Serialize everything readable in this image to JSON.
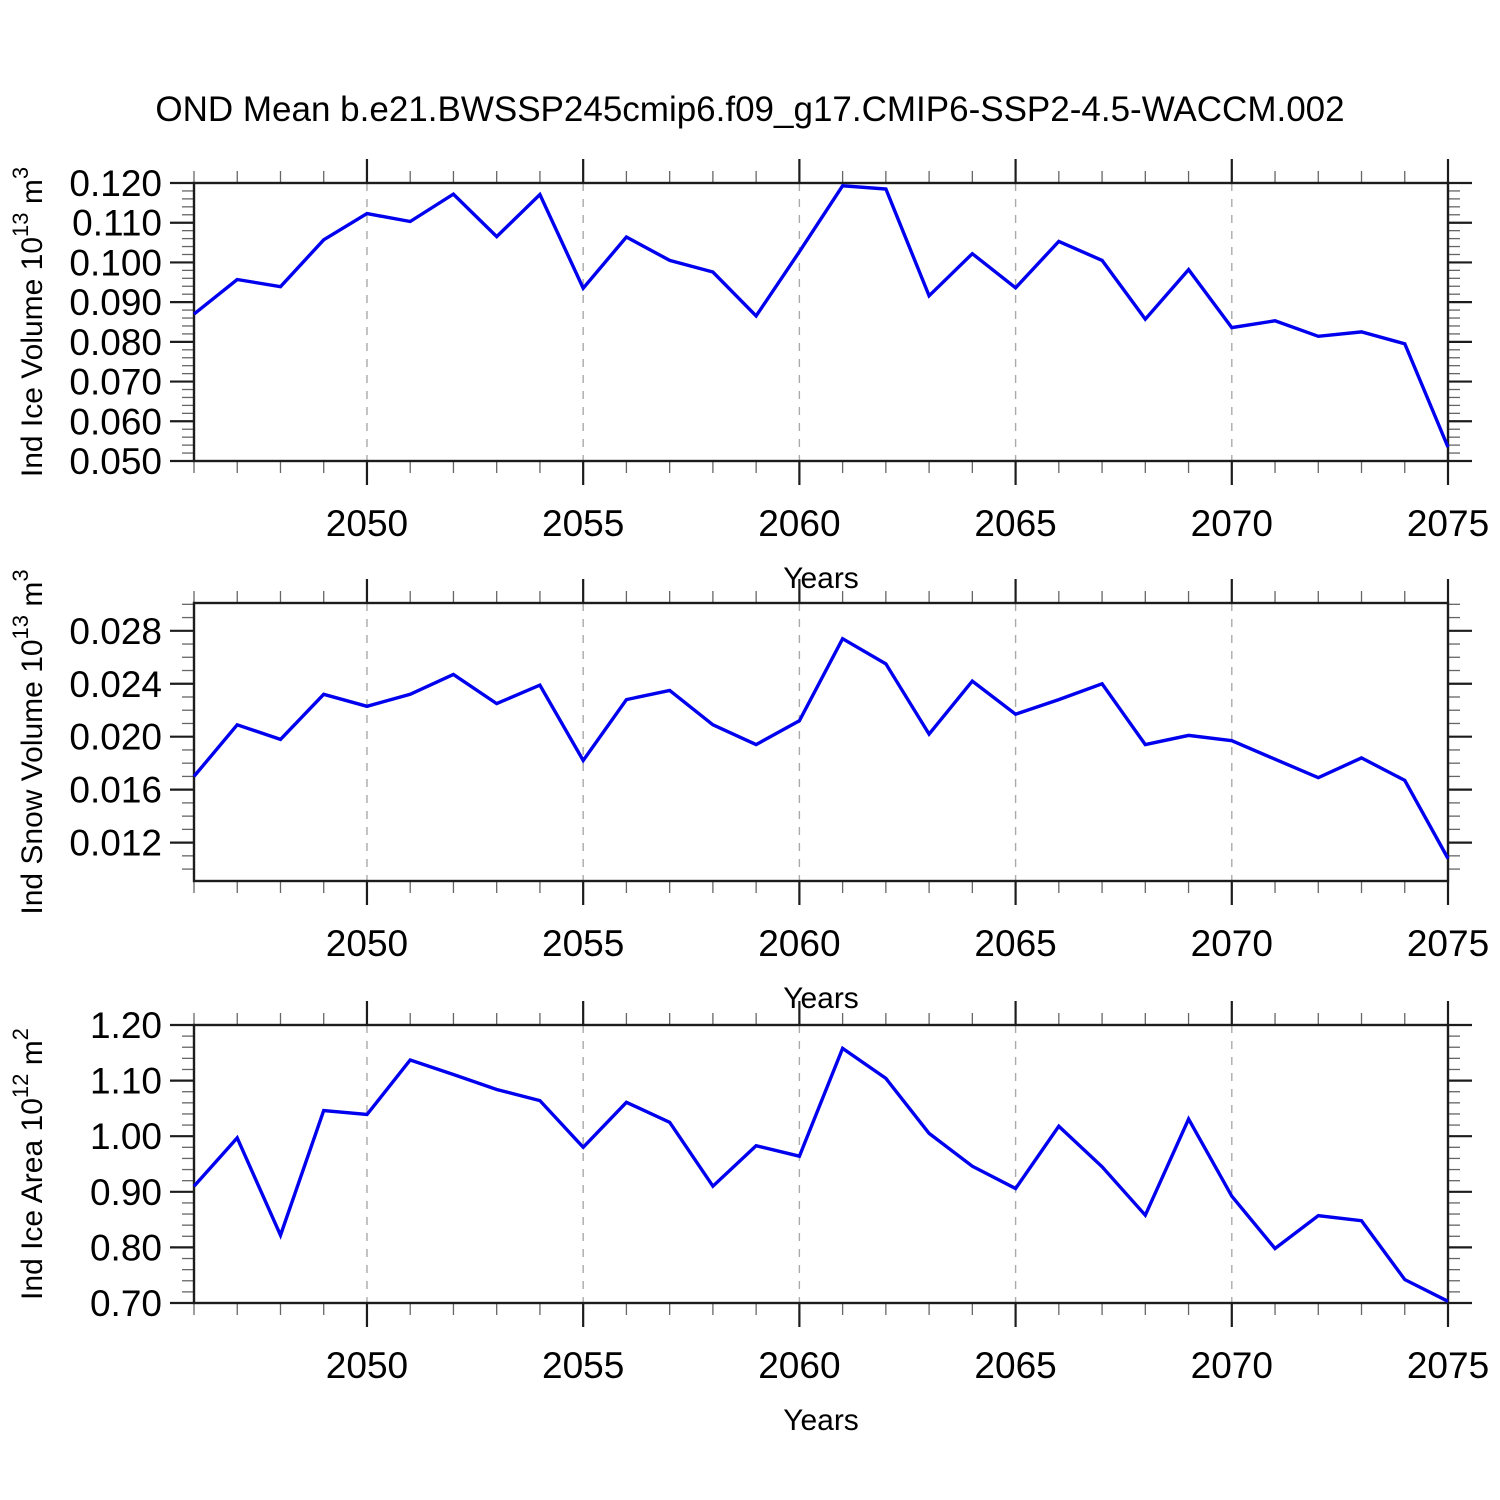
{
  "page": {
    "title": "OND Mean b.e21.BWSSP245cmip6.f09_g17.CMIP6-SSP2-4.5-WACCM.002"
  },
  "colors": {
    "line": "#0000EE",
    "axis": "#1c1c1c",
    "minor_tick": "#666666",
    "grid": "#aaaaaa",
    "text": "#000000",
    "background": "#ffffff"
  },
  "chart_data": [
    {
      "id": "ice-volume",
      "type": "line",
      "title": "",
      "xlabel": "Years",
      "ylabel": "Ind Ice Volume 10^13 m^3",
      "x": [
        2046,
        2047,
        2048,
        2049,
        2050,
        2051,
        2052,
        2053,
        2054,
        2055,
        2056,
        2057,
        2058,
        2059,
        2060,
        2061,
        2062,
        2063,
        2064,
        2065,
        2066,
        2067,
        2068,
        2069,
        2070,
        2071,
        2072,
        2073,
        2074,
        2075
      ],
      "values": [
        0.087,
        0.0957,
        0.0939,
        0.1057,
        0.1123,
        0.1103,
        0.1172,
        0.1065,
        0.1171,
        0.0935,
        0.1064,
        0.1005,
        0.0976,
        0.0865,
        0.1027,
        0.1193,
        0.1185,
        0.0916,
        0.1022,
        0.0936,
        0.1053,
        0.1005,
        0.0857,
        0.0982,
        0.0836,
        0.0853,
        0.0814,
        0.0825,
        0.0795,
        0.0535
      ],
      "xlim": [
        2046,
        2075
      ],
      "ylim": [
        0.05,
        0.12
      ],
      "xticks": [
        2050,
        2055,
        2060,
        2065,
        2070,
        2075
      ],
      "xtick_labels": [
        "2050",
        "2055",
        "2060",
        "2065",
        "2070",
        "2075"
      ],
      "x_minor_step": 1,
      "ytick_values": [
        0.05,
        0.06,
        0.07,
        0.08,
        0.09,
        0.1,
        0.11,
        0.12
      ],
      "ytick_labels": [
        "0.050",
        "0.060",
        "0.070",
        "0.080",
        "0.090",
        "0.100",
        "0.110",
        "0.120"
      ],
      "y_minor_step": 0.002,
      "grid_x": [
        2050,
        2055,
        2060,
        2065,
        2070
      ],
      "grid_style": "dashed",
      "legend": null
    },
    {
      "id": "snow-volume",
      "type": "line",
      "title": "",
      "xlabel": "Years",
      "ylabel": "Ind Snow Volume 10^13 m^3",
      "x": [
        2046,
        2047,
        2048,
        2049,
        2050,
        2051,
        2052,
        2053,
        2054,
        2055,
        2056,
        2057,
        2058,
        2059,
        2060,
        2061,
        2062,
        2063,
        2064,
        2065,
        2066,
        2067,
        2068,
        2069,
        2070,
        2071,
        2072,
        2073,
        2074,
        2075
      ],
      "values": [
        0.017,
        0.0209,
        0.0198,
        0.0232,
        0.0223,
        0.0232,
        0.0247,
        0.0225,
        0.0239,
        0.0182,
        0.0228,
        0.0235,
        0.0209,
        0.0194,
        0.0212,
        0.0274,
        0.0255,
        0.0202,
        0.0242,
        0.0217,
        0.0228,
        0.024,
        0.0194,
        0.0201,
        0.0197,
        0.0183,
        0.0169,
        0.0184,
        0.0167,
        0.0108
      ],
      "xlim": [
        2046,
        2075
      ],
      "ylim": [
        0.0091,
        0.0301
      ],
      "xticks": [
        2050,
        2055,
        2060,
        2065,
        2070,
        2075
      ],
      "xtick_labels": [
        "2050",
        "2055",
        "2060",
        "2065",
        "2070",
        "2075"
      ],
      "x_minor_step": 1,
      "ytick_values": [
        0.012,
        0.016,
        0.02,
        0.024,
        0.028
      ],
      "ytick_labels": [
        "0.012",
        "0.016",
        "0.020",
        "0.024",
        "0.028"
      ],
      "y_minor_step": 0.001,
      "grid_x": [
        2050,
        2055,
        2060,
        2065,
        2070
      ],
      "grid_style": "dashed",
      "legend": null
    },
    {
      "id": "ice-area",
      "type": "line",
      "title": "",
      "xlabel": "Years",
      "ylabel": "Ind Ice Area 10^12 m^2",
      "x": [
        2046,
        2047,
        2048,
        2049,
        2050,
        2051,
        2052,
        2053,
        2054,
        2055,
        2056,
        2057,
        2058,
        2059,
        2060,
        2061,
        2062,
        2063,
        2064,
        2065,
        2066,
        2067,
        2068,
        2069,
        2070,
        2071,
        2072,
        2073,
        2074,
        2075
      ],
      "values": [
        0.91,
        0.997,
        0.822,
        1.046,
        1.039,
        1.137,
        1.111,
        1.084,
        1.064,
        0.98,
        1.061,
        1.025,
        0.91,
        0.983,
        0.964,
        1.158,
        1.104,
        1.005,
        0.946,
        0.906,
        1.018,
        0.945,
        0.858,
        1.031,
        0.892,
        0.798,
        0.857,
        0.848,
        0.742,
        0.703
      ],
      "xlim": [
        2046,
        2075
      ],
      "ylim": [
        0.7,
        1.2
      ],
      "xticks": [
        2050,
        2055,
        2060,
        2065,
        2070,
        2075
      ],
      "xtick_labels": [
        "2050",
        "2055",
        "2060",
        "2065",
        "2070",
        "2075"
      ],
      "x_minor_step": 1,
      "ytick_values": [
        0.7,
        0.8,
        0.9,
        1.0,
        1.1,
        1.2
      ],
      "ytick_labels": [
        "0.70",
        "0.80",
        "0.90",
        "1.00",
        "1.10",
        "1.20"
      ],
      "y_minor_step": 0.02,
      "grid_x": [
        2050,
        2055,
        2060,
        2065,
        2070
      ],
      "grid_style": "dashed",
      "legend": null
    }
  ]
}
